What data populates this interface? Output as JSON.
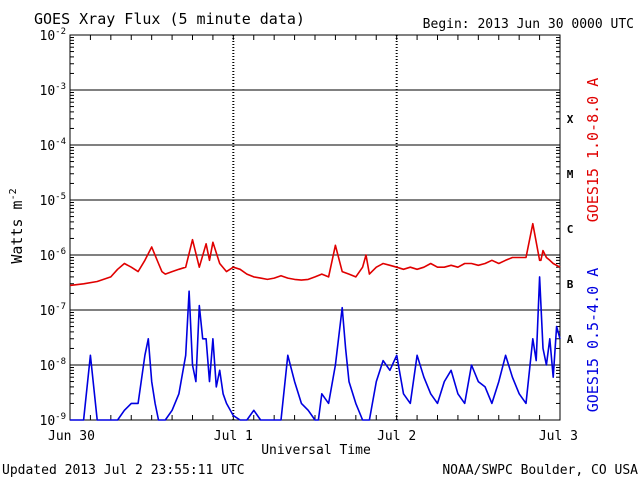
{
  "chart_data": {
    "type": "line",
    "title": "GOES Xray Flux (5 minute data)",
    "begin_label": "Begin:  2013 Jun 30 0000 UTC",
    "ylabel": "Watts m",
    "ylabel_sup": "-2",
    "xlabel": "Universal Time",
    "y_scale": "log",
    "ylim": [
      1e-09,
      0.01
    ],
    "xlim": [
      0,
      72
    ],
    "x_unit": "hours since 2013 Jun 30 0000 UTC",
    "grid": true,
    "y_ticks": [
      {
        "value": 0.01,
        "base": "10",
        "exp": "-2"
      },
      {
        "value": 0.001,
        "base": "10",
        "exp": "-3"
      },
      {
        "value": 0.0001,
        "base": "10",
        "exp": "-4"
      },
      {
        "value": 1e-05,
        "base": "10",
        "exp": "-5"
      },
      {
        "value": 1e-06,
        "base": "10",
        "exp": "-6"
      },
      {
        "value": 1e-07,
        "base": "10",
        "exp": "-7"
      },
      {
        "value": 1e-08,
        "base": "10",
        "exp": "-8"
      },
      {
        "value": 1e-09,
        "base": "10",
        "exp": "-9"
      }
    ],
    "x_ticks": [
      {
        "value": 0,
        "label": "Jun 30"
      },
      {
        "value": 24,
        "label": "Jul 1"
      },
      {
        "value": 48,
        "label": "Jul 2"
      },
      {
        "value": 72,
        "label": "Jul 3"
      }
    ],
    "flare_classes": [
      {
        "label": "X",
        "value": 0.0003
      },
      {
        "label": "M",
        "value": 3e-05
      },
      {
        "label": "C",
        "value": 3e-06
      },
      {
        "label": "B",
        "value": 3e-07
      },
      {
        "label": "A",
        "value": 3e-08
      }
    ],
    "series": [
      {
        "name": "GOES15 1.0-8.0 A",
        "color": "#e00000",
        "x": [
          0,
          2,
          4,
          6,
          7,
          8,
          9,
          10,
          11,
          12,
          13,
          13.5,
          14,
          15,
          16,
          17,
          18,
          19,
          20,
          20.5,
          21,
          22,
          23,
          24,
          25,
          26,
          27,
          28,
          29,
          30,
          31,
          32,
          33,
          34,
          35,
          36,
          37,
          38,
          39,
          40,
          41,
          42,
          43,
          43.5,
          44,
          45,
          46,
          47,
          48,
          49,
          50,
          51,
          52,
          53,
          54,
          55,
          56,
          57,
          58,
          59,
          60,
          61,
          62,
          63,
          64,
          65,
          66,
          67,
          68,
          69,
          69.2,
          69.5,
          70,
          70.5,
          71,
          72
        ],
        "values": [
          2.8e-07,
          3e-07,
          3.3e-07,
          4e-07,
          5.5e-07,
          7e-07,
          6e-07,
          5e-07,
          8e-07,
          1.4e-06,
          7e-07,
          5e-07,
          4.5e-07,
          5e-07,
          5.5e-07,
          6e-07,
          1.9e-06,
          6e-07,
          1.6e-06,
          8e-07,
          1.7e-06,
          7e-07,
          5e-07,
          6e-07,
          5.5e-07,
          4.5e-07,
          4e-07,
          3.8e-07,
          3.6e-07,
          3.8e-07,
          4.2e-07,
          3.8e-07,
          3.6e-07,
          3.5e-07,
          3.6e-07,
          4e-07,
          4.5e-07,
          4e-07,
          1.5e-06,
          5e-07,
          4.5e-07,
          4e-07,
          6e-07,
          1e-06,
          4.5e-07,
          6e-07,
          7e-07,
          6.5e-07,
          6e-07,
          5.5e-07,
          6e-07,
          5.5e-07,
          6e-07,
          7e-07,
          6e-07,
          6e-07,
          6.5e-07,
          6e-07,
          7e-07,
          7e-07,
          6.5e-07,
          7e-07,
          8e-07,
          7e-07,
          8e-07,
          9e-07,
          9e-07,
          9e-07,
          3.7e-06,
          8e-07,
          8e-07,
          1.2e-06,
          9e-07,
          8e-07,
          7e-07,
          6e-07
        ]
      },
      {
        "name": "GOES15 0.5-4.0 A",
        "color": "#0000e0",
        "x": [
          0,
          1,
          2,
          3,
          4,
          5,
          6,
          7,
          8,
          9,
          10,
          11,
          11.5,
          12,
          12.5,
          13,
          14,
          15,
          16,
          17,
          17.5,
          18,
          18.5,
          19,
          19.5,
          20,
          20.5,
          21,
          21.5,
          22,
          22.5,
          23,
          24,
          25,
          26,
          27,
          28,
          29,
          30,
          31,
          32,
          33,
          34,
          35,
          36,
          36.5,
          37,
          38,
          39,
          40,
          40.5,
          41,
          42,
          43,
          43.5,
          44,
          45,
          46,
          47,
          48,
          49,
          50,
          51,
          52,
          53,
          54,
          55,
          56,
          57,
          58,
          59,
          60,
          61,
          62,
          63,
          64,
          65,
          66,
          67,
          68,
          68.5,
          69,
          69.5,
          70,
          70.5,
          71,
          71.5,
          72
        ],
        "values": [
          1e-09,
          1e-09,
          1e-09,
          1.5e-08,
          1e-09,
          1e-09,
          1e-09,
          1e-09,
          1.5e-09,
          2e-09,
          2e-09,
          1.5e-08,
          3e-08,
          5e-09,
          2e-09,
          1e-09,
          1e-09,
          1.5e-09,
          3e-09,
          1.5e-08,
          2.2e-07,
          1e-08,
          5e-09,
          1.2e-07,
          3e-08,
          3e-08,
          5e-09,
          3e-08,
          4e-09,
          8e-09,
          3e-09,
          2e-09,
          1.2e-09,
          1e-09,
          1e-09,
          1.5e-09,
          1e-09,
          1e-09,
          1e-09,
          1e-09,
          1.5e-08,
          5e-09,
          2e-09,
          1.5e-09,
          1e-09,
          1e-09,
          3e-09,
          2e-09,
          1e-08,
          1.1e-07,
          2e-08,
          5e-09,
          2e-09,
          1e-09,
          1e-09,
          1e-09,
          5e-09,
          1.2e-08,
          8e-09,
          1.5e-08,
          3e-09,
          2e-09,
          1.5e-08,
          6e-09,
          3e-09,
          2e-09,
          5e-09,
          8e-09,
          3e-09,
          2e-09,
          1e-08,
          5e-09,
          4e-09,
          2e-09,
          5e-09,
          1.5e-08,
          6e-09,
          3e-09,
          2e-09,
          3e-08,
          1.2e-08,
          4e-07,
          2e-08,
          1e-08,
          3e-08,
          6e-09,
          5e-08,
          3e-08
        ]
      }
    ]
  },
  "footer": {
    "updated": "Updated 2013 Jul  2 23:55:11 UTC",
    "source": "NOAA/SWPC Boulder, CO USA"
  }
}
